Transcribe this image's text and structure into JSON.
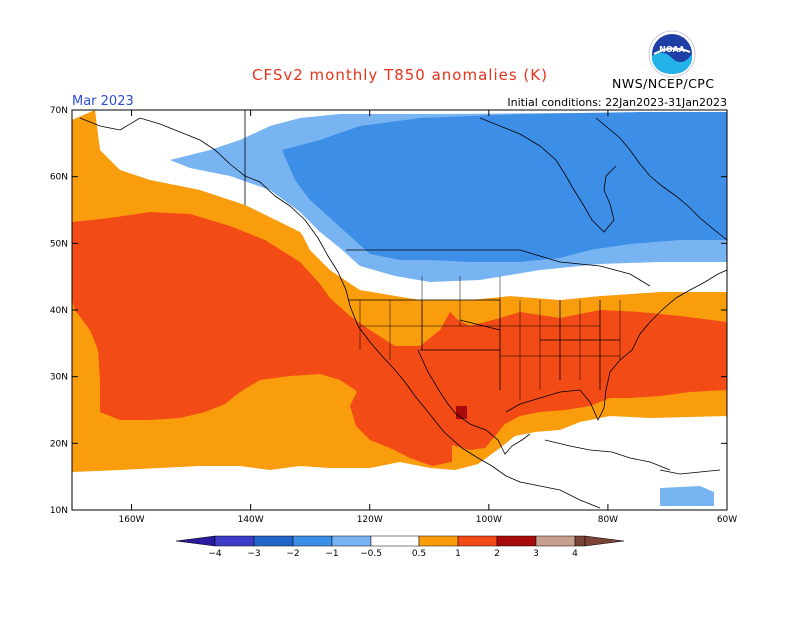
{
  "header": {
    "title": "CFSv2 monthly T850 anomalies (K)",
    "org": "NWS/NCEP/CPC",
    "month": "Mar 2023",
    "initial_conditions": "Initial conditions: 22Jan2023-31Jan2023",
    "logo_text": "NOAA"
  },
  "map": {
    "lat_ticks": [
      "70N",
      "60N",
      "50N",
      "40N",
      "30N",
      "20N",
      "10N"
    ],
    "lon_ticks": [
      "160W",
      "140W",
      "120W",
      "100W",
      "80W",
      "60W"
    ],
    "anomaly_regions_description_free": true
  },
  "colorbar": {
    "ticks": [
      "-4",
      "-3",
      "-2",
      "-1",
      "-0.5",
      "0.5",
      "1",
      "2",
      "3",
      "4"
    ],
    "colors": {
      "lt_m4": "#2a1a9e",
      "m4_m3": "#3c3cc8",
      "m3_m2": "#2266cc",
      "m2_m1": "#3d8ee6",
      "m1_m05": "#79b4f2",
      "neutral": "#ffffff",
      "p05_1": "#f99d0c",
      "p1_2": "#f34b16",
      "p2_3": "#a80a0c",
      "p3_4": "#c8a090",
      "gt_4": "#7a4436"
    }
  }
}
